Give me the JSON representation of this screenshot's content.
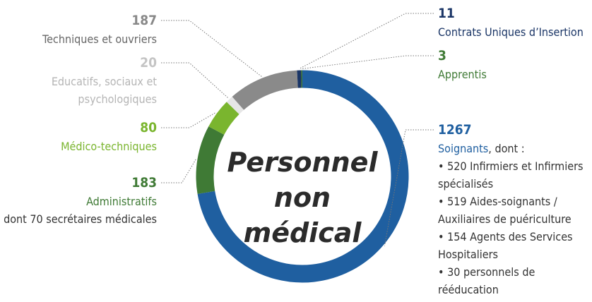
{
  "chart_data": {
    "type": "donut",
    "title": "Personnel non médical",
    "segments": [
      {
        "name": "Soignants",
        "suffix": ", dont :",
        "value": 1267,
        "color": "#1f5fa0",
        "details": [
          "• 520 Infirmiers et Infirmiers spécialisés",
          "• 519 Aides-soignants / Auxiliaires de puériculture",
          "• 154 Agents des Services Hospitaliers",
          "• 30 personnels de rééducation"
        ]
      },
      {
        "name": "Administratifs",
        "value": 183,
        "color": "#3f7a35",
        "details": [
          "dont 70 secrétaires médicales"
        ]
      },
      {
        "name": "Médico-techniques",
        "value": 80,
        "color": "#7ab52e"
      },
      {
        "name": "Educatifs, sociaux et psychologiques",
        "value": 20,
        "color": "#e6e6e6"
      },
      {
        "name": "Techniques et ouvriers",
        "value": 187,
        "color": "#8a8a8a"
      },
      {
        "name": "Contrats Uniques d’Insertion",
        "value": 11,
        "color": "#1a3566"
      },
      {
        "name": "Apprentis",
        "value": 3,
        "color": "#3f7a35"
      }
    ]
  }
}
